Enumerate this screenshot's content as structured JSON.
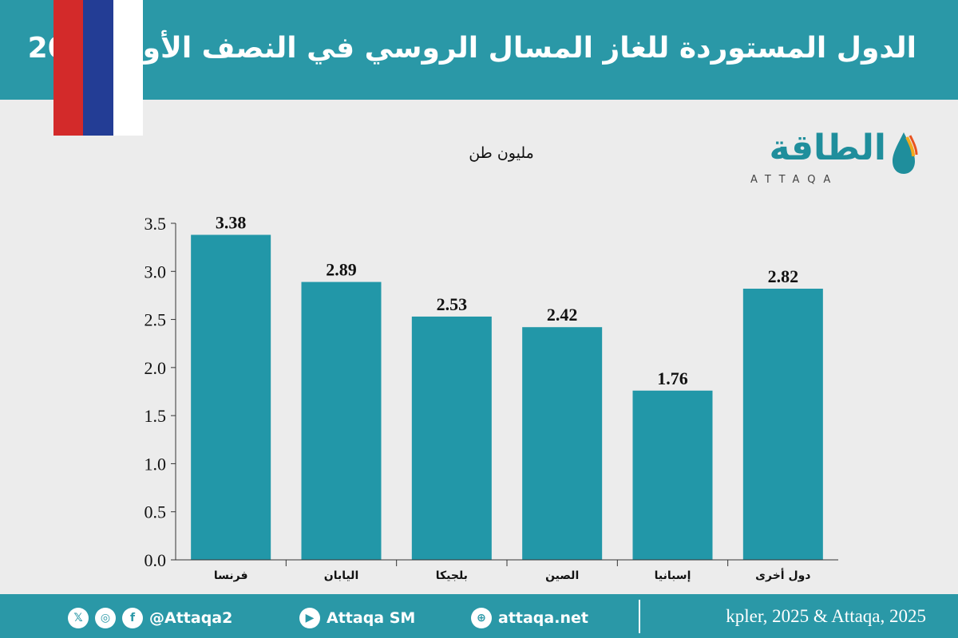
{
  "header": {
    "title": "الدول المستوردة للغاز المسال الروسي في النصف الأول 2025"
  },
  "flag": {
    "colors": [
      "#d32a2a",
      "#233d95",
      "#ffffff"
    ]
  },
  "logo": {
    "text": "الطاقة",
    "subtext": "ATTAQA"
  },
  "chart_data": {
    "type": "bar",
    "title": "الدول المستوردة للغاز المسال الروسي في النصف الأول 2025",
    "unit_label": "مليون طن",
    "categories": [
      "فرنسا",
      "اليابان",
      "بلجيكا",
      "الصين",
      "إسبانيا",
      "دول أخرى"
    ],
    "values": [
      3.38,
      2.89,
      2.53,
      2.42,
      1.76,
      2.82
    ],
    "data_labels": [
      "3.38",
      "2.89",
      "2.53",
      "2.42",
      "1.76",
      "2.82"
    ],
    "ylim": [
      0,
      3.5
    ],
    "yticks": [
      "0.0",
      "0.5",
      "1.0",
      "1.5",
      "2.0",
      "2.5",
      "3.0",
      "3.5"
    ],
    "bar_color": "#2297a8",
    "grid": false
  },
  "footer": {
    "social_handle": "@Attaqa2",
    "youtube": "Attaqa SM",
    "website": "attaqa.net",
    "source": "kpler, 2025 & Attaqa, 2025",
    "icons": [
      "x-icon",
      "instagram-icon",
      "facebook-icon",
      "youtube-icon",
      "globe-icon"
    ]
  }
}
